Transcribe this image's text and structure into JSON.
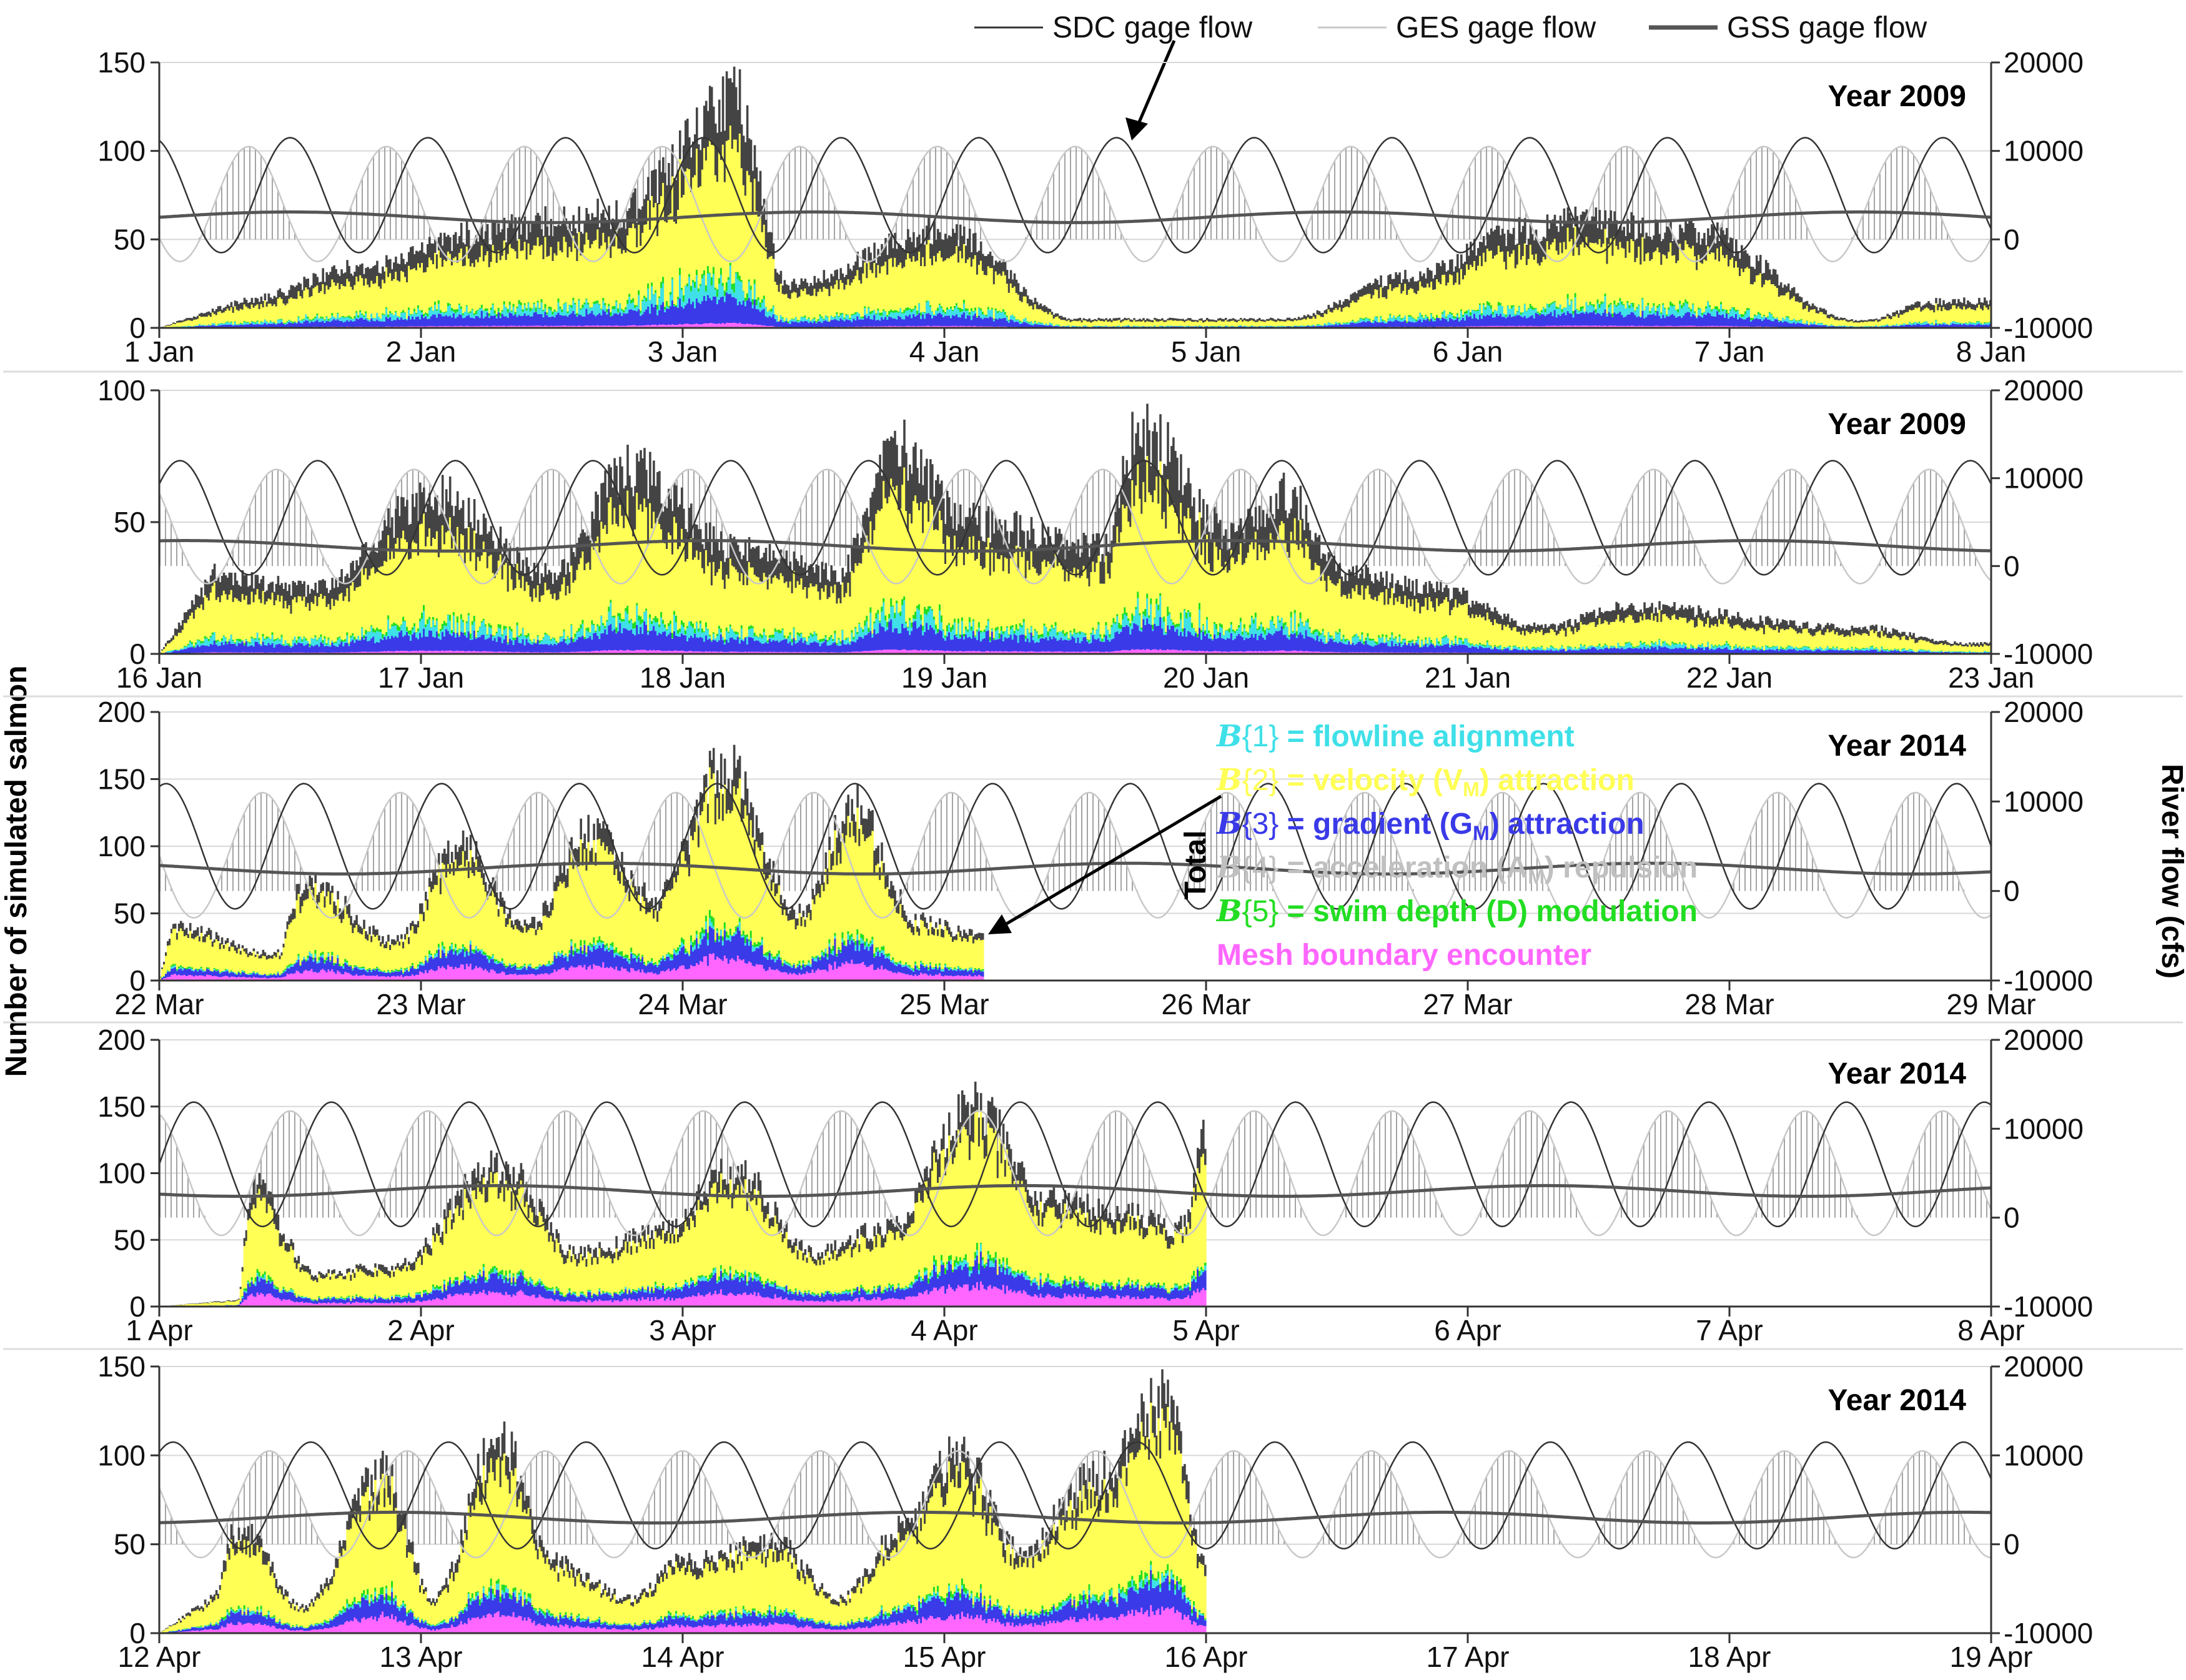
{
  "colors": {
    "flowline": "#3fe0e8",
    "velocity": "#ffff55",
    "gradient": "#3a3ae8",
    "acceleration": "#c0c0c0",
    "swimdepth": "#22dd22",
    "mesh": "#ff66ff",
    "total": "#444444",
    "sdc": "#333333",
    "ges": "#bbbbbb",
    "gss": "#555555",
    "hatch": "#9a9a9a"
  },
  "figure": {
    "ylabel_left": "Number of simulated salmon",
    "ylabel_right": "River flow (cfs)",
    "top_legend": [
      {
        "label": "SDC gage flow",
        "series": "sdc"
      },
      {
        "label": "GES gage flow",
        "series": "ges"
      },
      {
        "label": "GSS gage flow",
        "series": "gss"
      }
    ],
    "annotation_sdc": "SDC gage flow",
    "annotation_total": "Total",
    "behavior_legend": [
      {
        "sym": "B",
        "idx": "{1}",
        "text": " = flowline alignment",
        "color": "flowline"
      },
      {
        "sym": "B",
        "idx": "{2}",
        "text": " = velocity (V",
        "sub": "M",
        "tail": ") attraction",
        "color": "velocity"
      },
      {
        "sym": "B",
        "idx": "{3}",
        "text": " = gradient (G",
        "sub": "M",
        "tail": ") attraction",
        "color": "gradient"
      },
      {
        "sym": "B",
        "idx": "{4}",
        "text": " = acceleration (A",
        "sub": "M",
        "tail": ") repulsion",
        "color": "acceleration"
      },
      {
        "sym": "B",
        "idx": "{5}",
        "text": " = swim depth (D) modulation",
        "color": "swimdepth"
      },
      {
        "text": "Mesh boundary encounter",
        "color": "mesh"
      }
    ]
  },
  "chart_data": [
    {
      "type": "area",
      "title": "Year 2009",
      "x_ticks": [
        "1 Jan",
        "2 Jan",
        "3 Jan",
        "4 Jan",
        "5 Jan",
        "6 Jan",
        "7 Jan",
        "8 Jan"
      ],
      "y_ticks": [
        0,
        50,
        100,
        150
      ],
      "ylim": [
        0,
        150
      ],
      "y2_ticks": [
        -10000,
        0,
        10000,
        20000
      ],
      "y2lim": [
        -10000,
        20000
      ],
      "data_days": 7.0,
      "total_peaks": [
        [
          0.3,
          15
        ],
        [
          0.8,
          35
        ],
        [
          1.25,
          55
        ],
        [
          1.5,
          60
        ],
        [
          1.75,
          65
        ],
        [
          2.2,
          130
        ],
        [
          2.4,
          25
        ],
        [
          3.0,
          55
        ],
        [
          3.5,
          5
        ],
        [
          4.3,
          5
        ],
        [
          4.8,
          30
        ],
        [
          5.2,
          55
        ],
        [
          5.4,
          60
        ],
        [
          5.85,
          55
        ],
        [
          6.5,
          4
        ],
        [
          6.8,
          15
        ]
      ],
      "sdc_flow": {
        "mean": 5000,
        "amp": 6500,
        "cycles_per_day": 1.9,
        "phase": 0.3
      },
      "ges_flow": {
        "mean": 4000,
        "amp": 6500,
        "cycles_per_day": 1.9,
        "phase": 0.6
      },
      "gss_mean": 2500
    },
    {
      "type": "area",
      "title": "Year 2009",
      "x_ticks": [
        "16 Jan",
        "17 Jan",
        "18 Jan",
        "19 Jan",
        "20 Jan",
        "21 Jan",
        "22 Jan",
        "23 Jan"
      ],
      "y_ticks": [
        0,
        50,
        100
      ],
      "ylim": [
        0,
        100
      ],
      "y2_ticks": [
        -10000,
        0,
        10000,
        20000
      ],
      "y2lim": [
        -10000,
        20000
      ],
      "data_days": 7.0,
      "total_peaks": [
        [
          0.2,
          30
        ],
        [
          0.6,
          25
        ],
        [
          1.05,
          60
        ],
        [
          1.5,
          30
        ],
        [
          1.8,
          70
        ],
        [
          2.2,
          40
        ],
        [
          2.6,
          30
        ],
        [
          2.8,
          80
        ],
        [
          3.1,
          50
        ],
        [
          3.6,
          40
        ],
        [
          3.75,
          85
        ],
        [
          4.1,
          45
        ],
        [
          4.3,
          60
        ],
        [
          4.55,
          30
        ],
        [
          4.85,
          25
        ],
        [
          5.3,
          10
        ],
        [
          5.6,
          18
        ],
        [
          6.5,
          10
        ],
        [
          6.9,
          4
        ]
      ],
      "sdc_flow": {
        "mean": 5500,
        "amp": 6500,
        "cycles_per_day": 1.9,
        "phase": 0.1
      },
      "ges_flow": {
        "mean": 4500,
        "amp": 6500,
        "cycles_per_day": 1.9,
        "phase": 0.4
      },
      "gss_mean": 2300
    },
    {
      "type": "area",
      "title": "Year 2014",
      "x_ticks": [
        "22 Mar",
        "23 Mar",
        "24 Mar",
        "25 Mar",
        "26 Mar",
        "27 Mar",
        "28 Mar",
        "29 Mar"
      ],
      "y_ticks": [
        0,
        50,
        100,
        150,
        200
      ],
      "ylim": [
        0,
        200
      ],
      "y2_ticks": [
        -10000,
        0,
        10000,
        20000
      ],
      "y2lim": [
        -10000,
        20000
      ],
      "data_days": 3.15,
      "total_peaks": [
        [
          0.05,
          40
        ],
        [
          0.45,
          20
        ],
        [
          0.55,
          75
        ],
        [
          0.9,
          30
        ],
        [
          1.15,
          100
        ],
        [
          1.4,
          40
        ],
        [
          1.65,
          110
        ],
        [
          1.9,
          60
        ],
        [
          2.15,
          160
        ],
        [
          2.45,
          50
        ],
        [
          2.65,
          130
        ],
        [
          2.9,
          45
        ],
        [
          3.1,
          35
        ]
      ],
      "sdc_flow": {
        "mean": 5000,
        "amp": 7000,
        "cycles_per_day": 1.9,
        "phase": 0.2
      },
      "ges_flow": {
        "mean": 4000,
        "amp": 7000,
        "cycles_per_day": 1.9,
        "phase": 0.5
      },
      "gss_mean": 2500
    },
    {
      "type": "area",
      "title": "Year 2014",
      "x_ticks": [
        "1 Apr",
        "2 Apr",
        "3 Apr",
        "4 Apr",
        "5 Apr",
        "6 Apr",
        "7 Apr",
        "8 Apr"
      ],
      "y_ticks": [
        0,
        50,
        100,
        150,
        200
      ],
      "ylim": [
        0,
        200
      ],
      "y2_ticks": [
        -10000,
        0,
        10000,
        20000
      ],
      "y2lim": [
        -10000,
        20000
      ],
      "data_days": 4.0,
      "total_peaks": [
        [
          0.3,
          5
        ],
        [
          0.35,
          90
        ],
        [
          0.6,
          25
        ],
        [
          0.9,
          30
        ],
        [
          1.3,
          105
        ],
        [
          1.6,
          40
        ],
        [
          1.9,
          55
        ],
        [
          2.2,
          100
        ],
        [
          2.5,
          40
        ],
        [
          2.8,
          60
        ],
        [
          3.1,
          150
        ],
        [
          3.4,
          80
        ],
        [
          3.65,
          70
        ],
        [
          3.9,
          60
        ],
        [
          4.0,
          125
        ]
      ],
      "sdc_flow": {
        "mean": 6000,
        "amp": 7000,
        "cycles_per_day": 1.9,
        "phase": 0.0
      },
      "ges_flow": {
        "mean": 5000,
        "amp": 7000,
        "cycles_per_day": 1.9,
        "phase": 0.3
      },
      "gss_mean": 3000
    },
    {
      "type": "area",
      "title": "Year 2014",
      "x_ticks": [
        "12 Apr",
        "13 Apr",
        "14 Apr",
        "15 Apr",
        "16 Apr",
        "17 Apr",
        "18 Apr",
        "19 Apr"
      ],
      "y_ticks": [
        0,
        50,
        100,
        150
      ],
      "ylim": [
        0,
        150
      ],
      "y2_ticks": [
        -10000,
        0,
        10000,
        20000
      ],
      "y2lim": [
        -10000,
        20000
      ],
      "data_days": 4.0,
      "total_peaks": [
        [
          0.2,
          20
        ],
        [
          0.3,
          60
        ],
        [
          0.55,
          15
        ],
        [
          0.85,
          90
        ],
        [
          1.05,
          20
        ],
        [
          1.3,
          110
        ],
        [
          1.5,
          40
        ],
        [
          1.8,
          20
        ],
        [
          2.0,
          40
        ],
        [
          2.35,
          50
        ],
        [
          2.6,
          20
        ],
        [
          2.85,
          60
        ],
        [
          3.05,
          100
        ],
        [
          3.3,
          45
        ],
        [
          3.55,
          85
        ],
        [
          3.85,
          130
        ],
        [
          4.0,
          40
        ]
      ],
      "sdc_flow": {
        "mean": 5500,
        "amp": 6000,
        "cycles_per_day": 1.9,
        "phase": 0.15
      },
      "ges_flow": {
        "mean": 4500,
        "amp": 6000,
        "cycles_per_day": 1.9,
        "phase": 0.45
      },
      "gss_mean": 3000
    }
  ]
}
